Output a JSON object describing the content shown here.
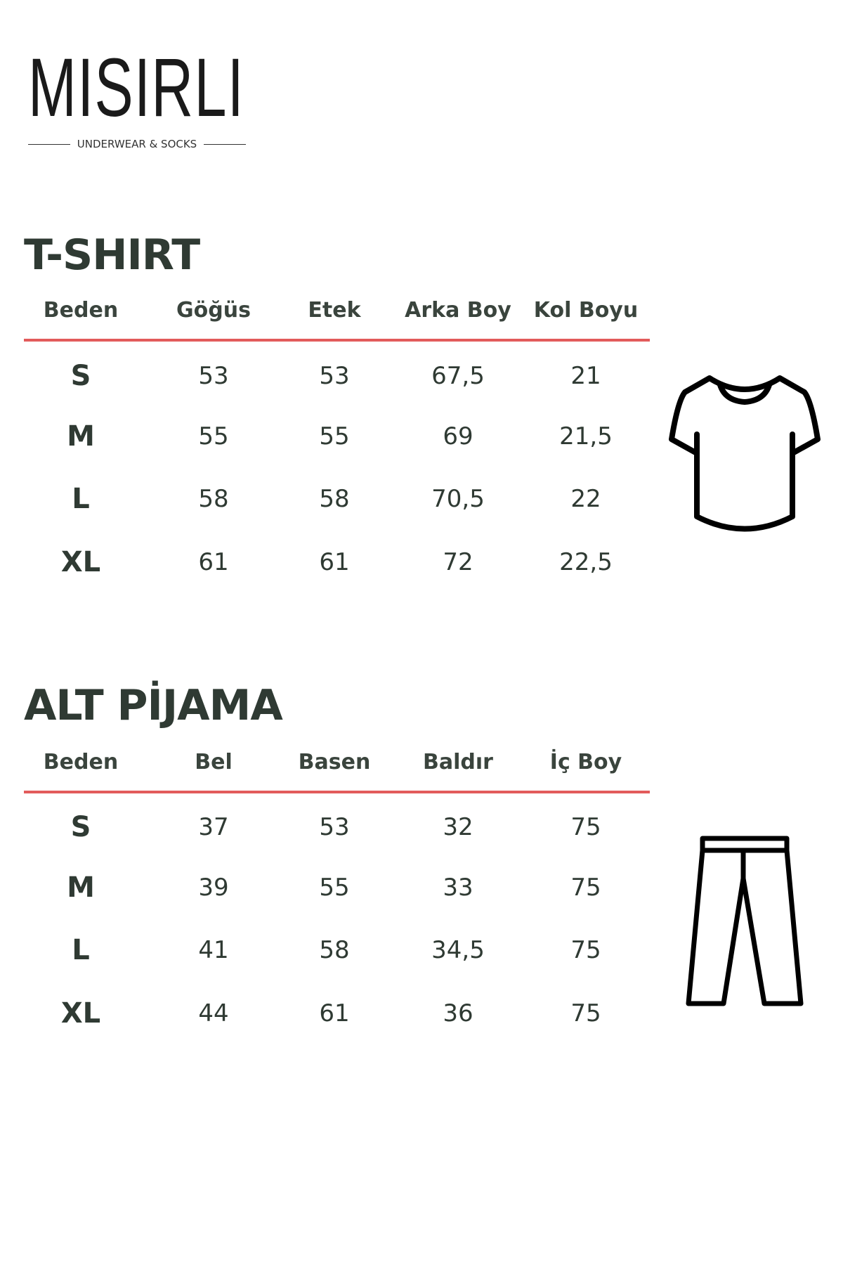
{
  "brand": {
    "name": "MISIRLI",
    "tagline": "UNDERWEAR & SOCKS"
  },
  "colors": {
    "accent_line": "#e25b5b",
    "text": "#2f3a33"
  },
  "tshirt": {
    "title": "T-SHIRT",
    "icon": "tshirt-icon",
    "headers": [
      "Beden",
      "Göğüs",
      "Etek",
      "Arka Boy",
      "Kol Boyu"
    ],
    "rows": [
      [
        "S",
        "53",
        "53",
        "67,5",
        "21"
      ],
      [
        "M",
        "55",
        "55",
        "69",
        "21,5"
      ],
      [
        "L",
        "58",
        "58",
        "70,5",
        "22"
      ],
      [
        "XL",
        "61",
        "61",
        "72",
        "22,5"
      ]
    ]
  },
  "pajama": {
    "title": "ALT PİJAMA",
    "icon": "pants-icon",
    "headers": [
      "Beden",
      "Bel",
      "Basen",
      "Baldır",
      "İç Boy"
    ],
    "rows": [
      [
        "S",
        "37",
        "53",
        "32",
        "75"
      ],
      [
        "M",
        "39",
        "55",
        "33",
        "75"
      ],
      [
        "L",
        "41",
        "58",
        "34,5",
        "75"
      ],
      [
        "XL",
        "44",
        "61",
        "36",
        "75"
      ]
    ]
  }
}
